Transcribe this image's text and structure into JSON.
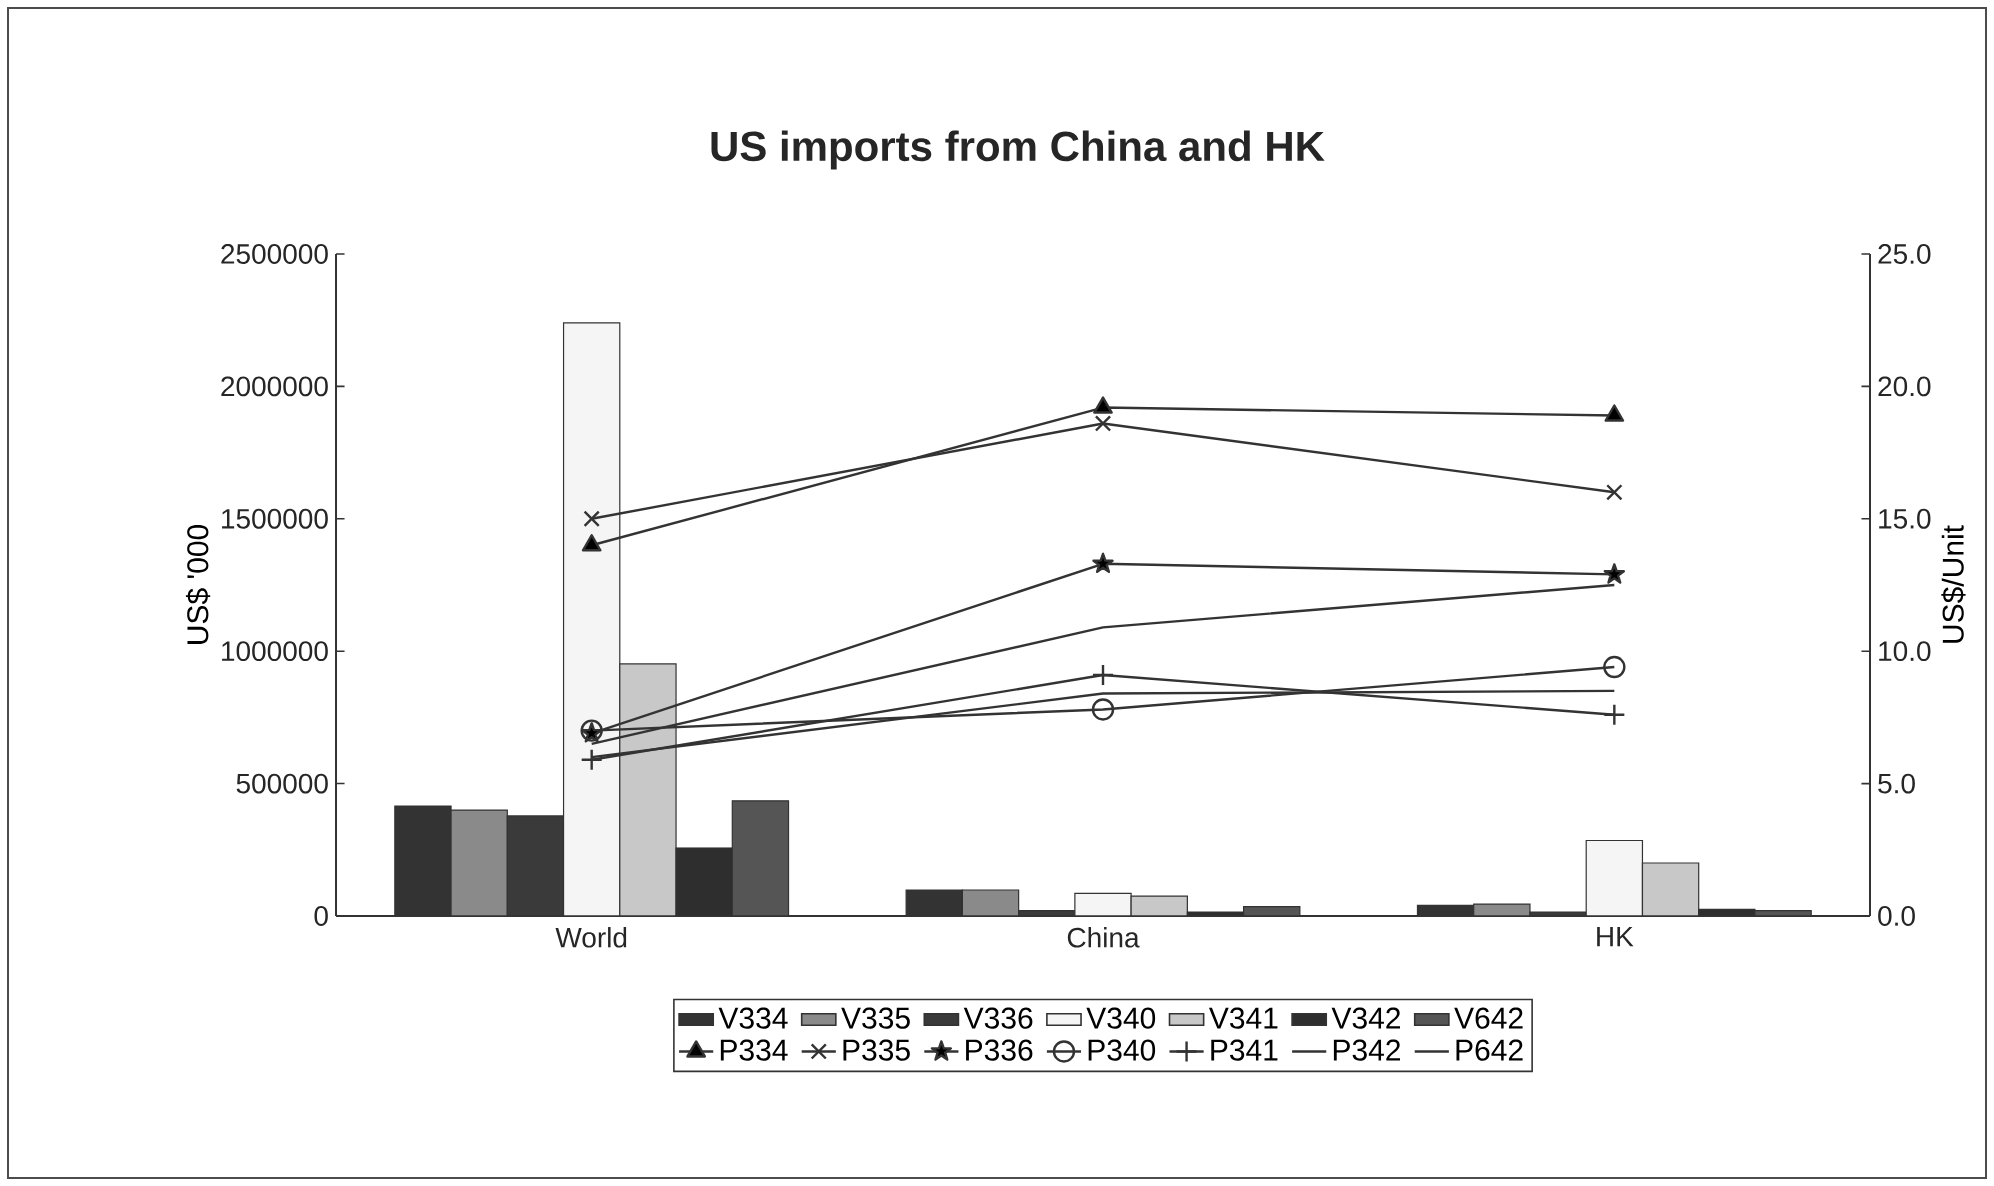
{
  "chart_data": {
    "type": "bar",
    "title": "US imports from China and HK",
    "ylabel": "US$ '000",
    "y2label": "US$/Unit",
    "categories": [
      "World",
      "China",
      "HK"
    ],
    "ylim": [
      0,
      2500000
    ],
    "yticks": [
      0,
      500000,
      1000000,
      1500000,
      2000000,
      2500000
    ],
    "y2lim": [
      0,
      25
    ],
    "y2ticks": [
      {
        "value": 0,
        "label": "0.0"
      },
      {
        "value": 5,
        "label": "5.0"
      },
      {
        "value": 10,
        "label": "10.0"
      },
      {
        "value": 15,
        "label": "15.0"
      },
      {
        "value": 20,
        "label": "20.0"
      },
      {
        "value": 25,
        "label": "25.0"
      }
    ],
    "legend": "bottom",
    "grid": false,
    "series": [
      {
        "name": "V334",
        "color": "#333333",
        "values": [
          415000,
          98000,
          40000
        ]
      },
      {
        "name": "V335",
        "color": "#8a8a8a",
        "values": [
          400000,
          98000,
          45000
        ]
      },
      {
        "name": "V336",
        "color": "#3a3a3a",
        "values": [
          378000,
          20000,
          15000
        ]
      },
      {
        "name": "V340",
        "color": "#f5f5f5",
        "values": [
          2240000,
          85000,
          285000
        ]
      },
      {
        "name": "V341",
        "color": "#c8c8c8",
        "values": [
          952000,
          75000,
          200000
        ]
      },
      {
        "name": "V342",
        "color": "#2e2e2e",
        "values": [
          257000,
          15000,
          25000
        ]
      },
      {
        "name": "V642",
        "color": "#555555",
        "values": [
          435000,
          35000,
          20000
        ]
      },
      {
        "name": "P334",
        "type": "line",
        "axis": "y2",
        "marker": "triangle",
        "color": "#333333",
        "values": [
          14.0,
          19.2,
          18.9
        ]
      },
      {
        "name": "P335",
        "type": "line",
        "axis": "y2",
        "marker": "cross",
        "color": "#333333",
        "values": [
          15.0,
          18.6,
          16.0
        ]
      },
      {
        "name": "P336",
        "type": "line",
        "axis": "y2",
        "marker": "star",
        "color": "#333333",
        "values": [
          6.9,
          13.3,
          12.9
        ]
      },
      {
        "name": "P340",
        "type": "line",
        "axis": "y2",
        "marker": "circle",
        "color": "#333333",
        "values": [
          7.0,
          7.8,
          9.4
        ]
      },
      {
        "name": "P341",
        "type": "line",
        "axis": "y2",
        "marker": "plus",
        "color": "#333333",
        "values": [
          5.9,
          9.1,
          7.6
        ]
      },
      {
        "name": "P342",
        "type": "line",
        "axis": "y2",
        "color": "#333333",
        "values": [
          6.0,
          8.4,
          8.5
        ]
      },
      {
        "name": "P642",
        "type": "line",
        "axis": "y2",
        "color": "#333333",
        "values": [
          6.5,
          10.9,
          12.5
        ]
      }
    ]
  }
}
